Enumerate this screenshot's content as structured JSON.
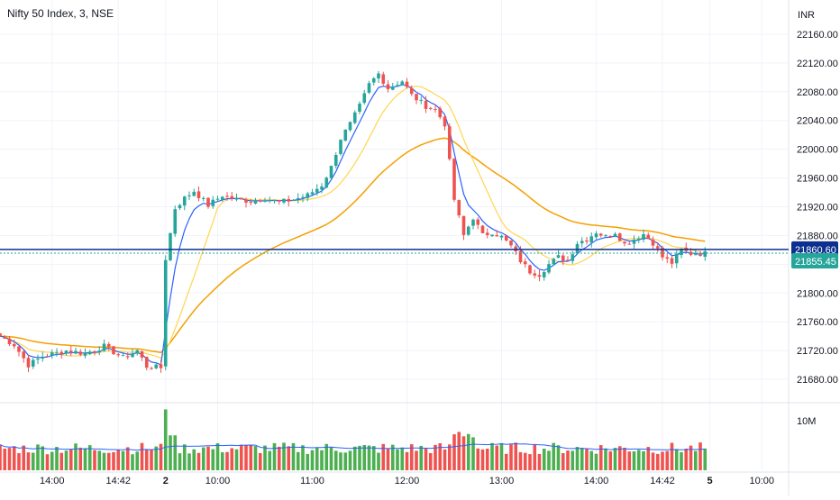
{
  "header": {
    "symbol_title": "Nifty 50 Index, 3, NSE",
    "currency": "INR"
  },
  "colors": {
    "up": "#26a69a",
    "down": "#ef5350",
    "vol_up": "#4caf50",
    "vol_down": "#ef5350",
    "ma_fast": "#2962ff",
    "ma_slow": "#ffd54f",
    "ma_long": "#f59f00",
    "price_line": "#0d2f8f",
    "last_price_bg": "#26a69a",
    "vol_ma": "#2962ff"
  },
  "chart_data": {
    "type": "candlestick",
    "y_axis": {
      "ticks": [
        21680,
        21720,
        21760,
        21800,
        21840,
        21880,
        21920,
        21960,
        22000,
        22040,
        22080,
        22120,
        22160
      ],
      "tick_labels": [
        "21680.00",
        "21720.00",
        "21760.00",
        "21800.00",
        "21840.00",
        "21880.00",
        "21920.00",
        "21960.00",
        "22000.00",
        "22040.00",
        "22080.00",
        "22120.00",
        "22160.00"
      ],
      "range": [
        21650,
        22185
      ]
    },
    "x_axis": {
      "ticks": [
        {
          "label": "14:00",
          "idx": 11
        },
        {
          "label": "14:42",
          "idx": 25
        },
        {
          "label": "2",
          "idx": 35
        },
        {
          "label": "10:00",
          "idx": 46
        },
        {
          "label": "11:00",
          "idx": 66
        },
        {
          "label": "12:00",
          "idx": 86
        },
        {
          "label": "13:00",
          "idx": 106
        },
        {
          "label": "14:00",
          "idx": 126
        },
        {
          "label": "14:42",
          "idx": 140
        },
        {
          "label": "5",
          "idx": 150
        },
        {
          "label": "10:00",
          "idx": 161
        }
      ],
      "bold_labels": [
        "2",
        "5"
      ]
    },
    "price_labels": {
      "line_price": 21860.6,
      "line_price_label": "21860.60",
      "last_price": 21855.45,
      "last_price_label": "21855.45"
    },
    "volume_axis": {
      "label": "10M",
      "label_value": 10000000
    },
    "close_anchors": [
      [
        0,
        21740
      ],
      [
        3,
        21728
      ],
      [
        6,
        21700
      ],
      [
        9,
        21712
      ],
      [
        14,
        21720
      ],
      [
        18,
        21716
      ],
      [
        22,
        21726
      ],
      [
        26,
        21710
      ],
      [
        29,
        21720
      ],
      [
        31,
        21698
      ],
      [
        34,
        21696
      ],
      [
        35,
        21848
      ],
      [
        37,
        21918
      ],
      [
        39,
        21932
      ],
      [
        41,
        21942
      ],
      [
        44,
        21922
      ],
      [
        47,
        21936
      ],
      [
        50,
        21930
      ],
      [
        53,
        21928
      ],
      [
        56,
        21932
      ],
      [
        59,
        21926
      ],
      [
        62,
        21930
      ],
      [
        65,
        21936
      ],
      [
        68,
        21950
      ],
      [
        70,
        21975
      ],
      [
        72,
        22015
      ],
      [
        74,
        22035
      ],
      [
        76,
        22060
      ],
      [
        78,
        22090
      ],
      [
        80,
        22105
      ],
      [
        82,
        22085
      ],
      [
        85,
        22095
      ],
      [
        87,
        22075
      ],
      [
        90,
        22060
      ],
      [
        92,
        22055
      ],
      [
        94,
        22035
      ],
      [
        96,
        21930
      ],
      [
        98,
        21880
      ],
      [
        100,
        21905
      ],
      [
        102,
        21880
      ],
      [
        104,
        21885
      ],
      [
        106,
        21878
      ],
      [
        108,
        21865
      ],
      [
        110,
        21845
      ],
      [
        112,
        21830
      ],
      [
        114,
        21826
      ],
      [
        116,
        21840
      ],
      [
        118,
        21850
      ],
      [
        120,
        21845
      ],
      [
        122,
        21870
      ],
      [
        124,
        21875
      ],
      [
        126,
        21885
      ],
      [
        128,
        21878
      ],
      [
        130,
        21885
      ],
      [
        132,
        21868
      ],
      [
        134,
        21875
      ],
      [
        136,
        21882
      ],
      [
        138,
        21870
      ],
      [
        140,
        21850
      ],
      [
        142,
        21842
      ],
      [
        144,
        21860
      ],
      [
        146,
        21855
      ],
      [
        149,
        21855
      ]
    ],
    "candle_count": 150,
    "volume_range": [
      0,
      13000000
    ],
    "series": [
      {
        "name": "",
        "kind": "candles"
      },
      {
        "name": "",
        "kind": "ma_fast"
      },
      {
        "name": "",
        "kind": "ma_slow"
      },
      {
        "name": "",
        "kind": "ma_long"
      },
      {
        "name": "",
        "kind": "volume"
      }
    ]
  }
}
